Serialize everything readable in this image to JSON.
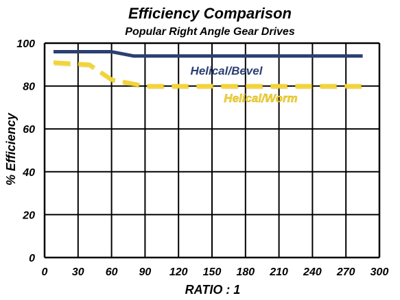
{
  "chart_data": {
    "type": "line",
    "title": "Efficiency Comparison",
    "subtitle": "Popular Right Angle Gear Drives",
    "xlabel": "RATIO : 1",
    "ylabel": "% Efficiency",
    "xlim": [
      0,
      300
    ],
    "ylim": [
      0,
      100
    ],
    "x_ticks": [
      "0",
      "30",
      "60",
      "90",
      "120",
      "150",
      "180",
      "210",
      "240",
      "270",
      "300"
    ],
    "y_ticks": [
      "0",
      "20",
      "40",
      "60",
      "80",
      "100"
    ],
    "grid": true,
    "series": [
      {
        "name": "Helical/Bevel",
        "color": "#2b3f72",
        "style": "solid",
        "points": [
          [
            8,
            96
          ],
          [
            60,
            96
          ],
          [
            80,
            94
          ],
          [
            285,
            94
          ]
        ]
      },
      {
        "name": "Helical/Worm",
        "color": "#f2d43a",
        "style": "dashed",
        "points": [
          [
            8,
            91
          ],
          [
            40,
            90
          ],
          [
            60,
            83
          ],
          [
            90,
            80
          ],
          [
            285,
            80
          ]
        ]
      }
    ]
  }
}
